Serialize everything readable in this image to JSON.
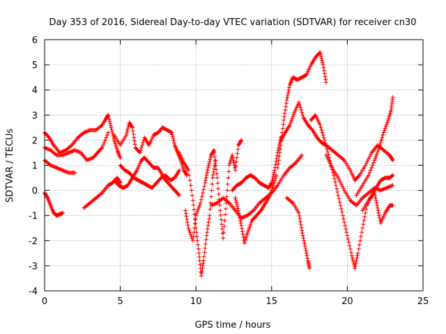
{
  "chart_data": {
    "type": "scatter",
    "title": "Day 353 of 2016, Sidereal Day-to-day VTEC variation (SDTVAR) for receiver cn30",
    "xlabel": "GPS time / hours",
    "ylabel": "SDTVAR / TECUs",
    "xlim": [
      0,
      25
    ],
    "ylim": [
      -4,
      6
    ],
    "x_ticks": [
      0,
      5,
      10,
      15,
      20,
      25
    ],
    "y_ticks": [
      -4,
      -3,
      -2,
      -1,
      0,
      1,
      2,
      3,
      4,
      5,
      6
    ],
    "grid": true,
    "legend": "none",
    "marker": "plus",
    "series": [
      {
        "color": "#ff0000",
        "points": [
          [
            0,
            2.3
          ],
          [
            0.3,
            2.1
          ],
          [
            0.6,
            1.8
          ],
          [
            1.0,
            1.5
          ],
          [
            1.4,
            1.6
          ],
          [
            1.8,
            1.8
          ],
          [
            2.2,
            2.1
          ],
          [
            2.6,
            2.3
          ],
          [
            3.0,
            2.4
          ],
          [
            3.4,
            2.4
          ],
          [
            3.8,
            2.6
          ],
          [
            4.1,
            2.9
          ],
          [
            4.2,
            3.0
          ],
          [
            4.4,
            2.5
          ],
          [
            4.6,
            2.0
          ],
          [
            4.8,
            1.6
          ],
          [
            5.0,
            1.3
          ]
        ]
      },
      {
        "color": "#ff0000",
        "points": [
          [
            0,
            1.7
          ],
          [
            0.4,
            1.6
          ],
          [
            0.8,
            1.4
          ],
          [
            1.2,
            1.4
          ],
          [
            1.6,
            1.5
          ],
          [
            2.0,
            1.6
          ],
          [
            2.4,
            1.5
          ],
          [
            2.8,
            1.2
          ],
          [
            3.2,
            1.3
          ],
          [
            3.5,
            1.5
          ],
          [
            3.8,
            1.7
          ],
          [
            4.2,
            2.3
          ]
        ]
      },
      {
        "color": "#ff0000",
        "points": [
          [
            0,
            1.2
          ],
          [
            0.4,
            1.0
          ],
          [
            0.8,
            0.9
          ],
          [
            1.2,
            0.8
          ],
          [
            1.6,
            0.7
          ],
          [
            2.0,
            0.7
          ]
        ]
      },
      {
        "color": "#ff0000",
        "points": [
          [
            0,
            -0.1
          ],
          [
            0.2,
            -0.3
          ],
          [
            0.4,
            -0.6
          ],
          [
            0.6,
            -0.9
          ],
          [
            0.8,
            -1.0
          ],
          [
            1.0,
            -0.95
          ],
          [
            1.2,
            -0.9
          ]
        ]
      },
      {
        "color": "#ff0000",
        "points": [
          [
            2.6,
            -0.7
          ],
          [
            3.0,
            -0.5
          ],
          [
            3.4,
            -0.3
          ],
          [
            3.8,
            -0.1
          ],
          [
            4.2,
            0.2
          ],
          [
            4.5,
            0.3
          ],
          [
            4.8,
            0.5
          ],
          [
            5.0,
            0.3
          ]
        ]
      },
      {
        "color": "#ff0000",
        "points": [
          [
            4.6,
            2.2
          ],
          [
            5.0,
            1.8
          ],
          [
            5.4,
            2.2
          ],
          [
            5.6,
            2.7
          ],
          [
            5.8,
            2.5
          ],
          [
            6.0,
            1.7
          ],
          [
            6.3,
            1.5
          ],
          [
            6.6,
            2.1
          ],
          [
            6.9,
            1.8
          ],
          [
            7.2,
            2.2
          ],
          [
            7.5,
            2.3
          ],
          [
            7.8,
            2.5
          ],
          [
            8.1,
            2.4
          ],
          [
            8.4,
            2.3
          ],
          [
            8.6,
            1.8
          ],
          [
            8.8,
            1.5
          ],
          [
            9.0,
            1.2
          ],
          [
            9.2,
            0.8
          ],
          [
            9.4,
            0.6
          ]
        ]
      },
      {
        "color": "#ff0000",
        "points": [
          [
            4.6,
            0.4
          ],
          [
            4.9,
            0.2
          ],
          [
            5.2,
            0.1
          ],
          [
            5.5,
            0.2
          ],
          [
            5.8,
            0.5
          ],
          [
            6.1,
            0.8
          ],
          [
            6.4,
            1.2
          ],
          [
            6.6,
            1.3
          ],
          [
            6.9,
            1.1
          ],
          [
            7.2,
            0.9
          ],
          [
            7.5,
            0.9
          ],
          [
            7.8,
            0.6
          ],
          [
            8.0,
            0.4
          ],
          [
            8.3,
            0.2
          ],
          [
            8.6,
            0.0
          ],
          [
            8.9,
            -0.2
          ]
        ]
      },
      {
        "color": "#ff0000",
        "points": [
          [
            5.0,
            1.0
          ],
          [
            5.3,
            0.8
          ],
          [
            5.6,
            0.7
          ],
          [
            5.9,
            0.5
          ],
          [
            6.2,
            0.4
          ],
          [
            6.5,
            0.3
          ],
          [
            6.8,
            0.2
          ],
          [
            7.1,
            0.1
          ],
          [
            7.4,
            0.3
          ],
          [
            7.7,
            0.5
          ],
          [
            8.0,
            0.6
          ],
          [
            8.3,
            0.4
          ],
          [
            8.6,
            0.5
          ],
          [
            8.9,
            0.8
          ]
        ]
      },
      {
        "color": "#ff0000",
        "points": [
          [
            8.9,
            1.5
          ],
          [
            9.2,
            1.1
          ],
          [
            9.5,
            0.8
          ],
          [
            9.8,
            -0.4
          ],
          [
            10.0,
            -1.5
          ],
          [
            10.2,
            -2.5
          ],
          [
            10.35,
            -3.4
          ],
          [
            10.5,
            -2.8
          ],
          [
            10.7,
            -1.8
          ],
          [
            10.9,
            -1.0
          ],
          [
            11.1,
            0.5
          ],
          [
            11.3,
            1.2
          ]
        ]
      },
      {
        "color": "#ff0000",
        "points": [
          [
            9.3,
            -0.8
          ],
          [
            9.5,
            -1.5
          ],
          [
            9.8,
            -2.0
          ],
          [
            10.0,
            -1.0
          ],
          [
            10.3,
            -0.5
          ],
          [
            10.6,
            0.3
          ],
          [
            10.8,
            0.9
          ],
          [
            11.0,
            1.4
          ],
          [
            11.2,
            1.6
          ]
        ]
      },
      {
        "color": "#ff0000",
        "points": [
          [
            11.2,
            1.5
          ],
          [
            11.4,
            0.5
          ],
          [
            11.6,
            -0.8
          ],
          [
            11.8,
            -1.9
          ],
          [
            12.0,
            -0.5
          ],
          [
            12.2,
            1.0
          ],
          [
            12.4,
            1.4
          ],
          [
            12.6,
            0.8
          ],
          [
            12.8,
            1.8
          ],
          [
            13.0,
            2.0
          ]
        ]
      },
      {
        "color": "#ff0000",
        "points": [
          [
            12.6,
            -0.3
          ],
          [
            12.8,
            -0.8
          ],
          [
            13.0,
            -1.4
          ],
          [
            13.2,
            -2.1
          ],
          [
            13.4,
            -1.7
          ],
          [
            13.7,
            -1.2
          ],
          [
            14.0,
            -1.0
          ],
          [
            14.3,
            -0.8
          ],
          [
            14.6,
            -0.5
          ],
          [
            14.9,
            -0.2
          ],
          [
            15.1,
            0.2
          ],
          [
            15.3,
            0.6
          ]
        ]
      },
      {
        "color": "#ff0000",
        "points": [
          [
            12.4,
            0.0
          ],
          [
            12.7,
            0.2
          ],
          [
            13.0,
            0.3
          ],
          [
            13.3,
            0.5
          ],
          [
            13.6,
            0.6
          ],
          [
            13.9,
            0.5
          ],
          [
            14.2,
            0.3
          ],
          [
            14.5,
            0.2
          ],
          [
            14.8,
            0.1
          ],
          [
            15.0,
            0.3
          ],
          [
            15.2,
            0.8
          ],
          [
            15.4,
            1.5
          ],
          [
            15.6,
            2.1
          ]
        ]
      },
      {
        "color": "#ff0000",
        "points": [
          [
            11.0,
            -0.6
          ],
          [
            11.4,
            -0.5
          ],
          [
            11.8,
            -0.3
          ],
          [
            12.2,
            -0.5
          ],
          [
            12.6,
            -0.8
          ],
          [
            13.0,
            -1.1
          ],
          [
            13.4,
            -1.0
          ],
          [
            13.8,
            -0.8
          ],
          [
            14.2,
            -0.5
          ],
          [
            14.6,
            -0.3
          ],
          [
            15.0,
            -0.1
          ],
          [
            15.4,
            0.2
          ],
          [
            15.8,
            0.6
          ],
          [
            16.2,
            0.9
          ],
          [
            16.6,
            1.1
          ],
          [
            17.0,
            1.4
          ]
        ]
      },
      {
        "color": "#ff0000",
        "points": [
          [
            15.4,
            0.9
          ],
          [
            15.6,
            1.8
          ],
          [
            15.8,
            2.8
          ],
          [
            16.0,
            3.6
          ],
          [
            16.2,
            4.2
          ],
          [
            16.4,
            4.5
          ],
          [
            16.7,
            4.4
          ],
          [
            17.0,
            4.5
          ],
          [
            17.3,
            4.6
          ],
          [
            17.6,
            5.0
          ],
          [
            17.9,
            5.3
          ],
          [
            18.2,
            5.5
          ],
          [
            18.4,
            5.0
          ],
          [
            18.6,
            4.3
          ]
        ]
      },
      {
        "color": "#ff0000",
        "points": [
          [
            15.6,
            2.0
          ],
          [
            15.9,
            2.3
          ],
          [
            16.2,
            2.6
          ],
          [
            16.5,
            3.1
          ],
          [
            16.8,
            3.5
          ],
          [
            17.1,
            2.9
          ],
          [
            17.4,
            2.6
          ],
          [
            17.7,
            2.4
          ],
          [
            18.0,
            2.1
          ],
          [
            18.3,
            1.9
          ],
          [
            18.6,
            1.8
          ],
          [
            19.0,
            1.6
          ],
          [
            19.4,
            1.4
          ],
          [
            19.8,
            1.2
          ],
          [
            20.2,
            0.8
          ],
          [
            20.5,
            0.4
          ],
          [
            20.8,
            0.6
          ],
          [
            21.2,
            1.0
          ],
          [
            21.6,
            1.5
          ],
          [
            22.0,
            1.8
          ],
          [
            22.4,
            1.6
          ],
          [
            22.8,
            1.4
          ],
          [
            23.0,
            1.2
          ]
        ]
      },
      {
        "color": "#ff0000",
        "points": [
          [
            17.6,
            2.8
          ],
          [
            17.9,
            3.0
          ],
          [
            18.2,
            2.6
          ],
          [
            18.5,
            2.0
          ],
          [
            18.8,
            1.3
          ],
          [
            19.1,
            0.6
          ],
          [
            19.4,
            -0.2
          ],
          [
            19.7,
            -1.0
          ],
          [
            20.0,
            -1.8
          ],
          [
            20.3,
            -2.6
          ],
          [
            20.5,
            -3.1
          ],
          [
            20.7,
            -2.5
          ],
          [
            21.0,
            -1.5
          ],
          [
            21.3,
            -0.6
          ],
          [
            21.6,
            -0.2
          ],
          [
            21.9,
            0.1
          ],
          [
            22.2,
            0.4
          ],
          [
            22.5,
            0.5
          ],
          [
            22.8,
            0.5
          ],
          [
            23.0,
            0.6
          ]
        ]
      },
      {
        "color": "#ff0000",
        "points": [
          [
            16.0,
            -0.3
          ],
          [
            16.4,
            -0.5
          ],
          [
            16.8,
            -0.9
          ],
          [
            17.0,
            -1.6
          ],
          [
            17.2,
            -2.2
          ],
          [
            17.4,
            -2.8
          ],
          [
            17.5,
            -3.1
          ]
        ]
      },
      {
        "color": "#ff0000",
        "points": [
          [
            18.6,
            1.4
          ],
          [
            19.0,
            0.9
          ],
          [
            19.4,
            0.5
          ],
          [
            19.8,
            0.0
          ],
          [
            20.2,
            -0.4
          ],
          [
            20.6,
            -0.6
          ],
          [
            21.0,
            -0.3
          ],
          [
            21.4,
            -0.1
          ],
          [
            21.8,
            0.1
          ],
          [
            22.2,
            0.0
          ],
          [
            22.6,
            0.1
          ],
          [
            23.0,
            0.2
          ]
        ]
      },
      {
        "color": "#ff0000",
        "points": [
          [
            20.6,
            -0.2
          ],
          [
            21.0,
            0.2
          ],
          [
            21.4,
            0.6
          ],
          [
            21.8,
            1.2
          ],
          [
            22.1,
            1.7
          ],
          [
            22.4,
            2.3
          ],
          [
            22.7,
            2.8
          ],
          [
            22.9,
            3.2
          ],
          [
            23.0,
            3.7
          ]
        ]
      },
      {
        "color": "#ff0000",
        "points": [
          [
            21.0,
            -0.8
          ],
          [
            21.4,
            -0.4
          ],
          [
            21.8,
            -0.1
          ],
          [
            22.0,
            -0.7
          ],
          [
            22.2,
            -1.3
          ],
          [
            22.5,
            -0.9
          ],
          [
            22.8,
            -0.6
          ],
          [
            23.0,
            -0.6
          ]
        ]
      }
    ]
  }
}
